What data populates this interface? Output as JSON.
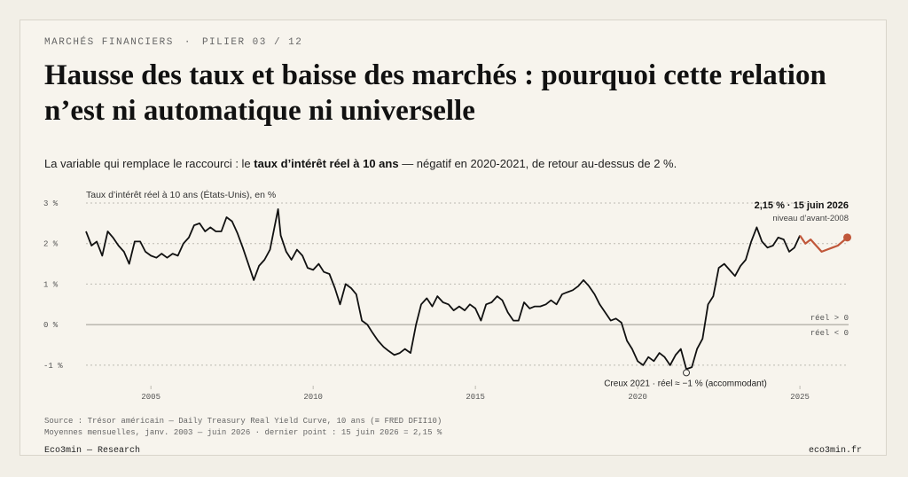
{
  "header": {
    "section": "MARCHÉS FINANCIERS",
    "separator": "·",
    "pillar": "PILIER 03 / 12",
    "title": "Hausse des taux et baisse des marchés : pourquoi cette relation n’est ni automatique ni universelle"
  },
  "lede": {
    "before": "La variable qui remplace le raccourci : le ",
    "bold": "taux d’intérêt réel à 10 ans",
    "after": " — négatif en 2020-2021, de retour au-dessus de 2 %."
  },
  "footer": {
    "source_line1": "Source : Trésor américain — Daily Treasury Real Yield Curve, 10 ans (≡ FRED DFII10)",
    "source_line2": "Moyennes mensuelles, janv. 2003 — juin 2026 · dernier point : 15 juin 2026 = 2,15 %",
    "brand": "Eco3min — Research",
    "site": "eco3min.fr"
  },
  "colors": {
    "line": "#111111",
    "highlight": "#c0573a",
    "grid": "#bdbab2",
    "axis_text": "#555555",
    "zero_line": "#9a978f"
  },
  "chart_data": {
    "type": "line",
    "ylabel": "Taux d’intérêt réel à 10 ans (États-Unis), en %",
    "ylim": [
      -1.2,
      3
    ],
    "yticks": [
      3,
      2,
      1,
      0,
      -1
    ],
    "ytick_labels": [
      "3 %",
      "2 %",
      "1 %",
      "0 %",
      "-1 %"
    ],
    "xlim": [
      2003.0,
      2026.5
    ],
    "xticks": [
      2005,
      2010,
      2015,
      2020,
      2025
    ],
    "xtick_labels": [
      "2005",
      "2010",
      "2015",
      "2020",
      "2025"
    ],
    "grid": true,
    "zero_labels": {
      "above": "réel > 0",
      "below": "réel < 0"
    },
    "series": [
      {
        "points": [
          [
            2003.0,
            2.3
          ],
          [
            2003.17,
            1.95
          ],
          [
            2003.33,
            2.05
          ],
          [
            2003.5,
            1.7
          ],
          [
            2003.67,
            2.3
          ],
          [
            2003.83,
            2.15
          ],
          [
            2004.0,
            1.95
          ],
          [
            2004.17,
            1.8
          ],
          [
            2004.33,
            1.5
          ],
          [
            2004.5,
            2.05
          ],
          [
            2004.67,
            2.05
          ],
          [
            2004.83,
            1.8
          ],
          [
            2005.0,
            1.7
          ],
          [
            2005.17,
            1.65
          ],
          [
            2005.33,
            1.75
          ],
          [
            2005.5,
            1.65
          ],
          [
            2005.67,
            1.75
          ],
          [
            2005.83,
            1.7
          ],
          [
            2006.0,
            2.0
          ],
          [
            2006.17,
            2.15
          ],
          [
            2006.33,
            2.45
          ],
          [
            2006.5,
            2.5
          ],
          [
            2006.67,
            2.3
          ],
          [
            2006.83,
            2.4
          ],
          [
            2007.0,
            2.3
          ],
          [
            2007.17,
            2.3
          ],
          [
            2007.33,
            2.65
          ],
          [
            2007.5,
            2.55
          ],
          [
            2007.67,
            2.25
          ],
          [
            2007.83,
            1.9
          ],
          [
            2008.0,
            1.5
          ],
          [
            2008.17,
            1.1
          ],
          [
            2008.33,
            1.45
          ],
          [
            2008.5,
            1.6
          ],
          [
            2008.67,
            1.85
          ],
          [
            2008.83,
            2.5
          ],
          [
            2008.92,
            2.85
          ],
          [
            2009.0,
            2.2
          ],
          [
            2009.17,
            1.8
          ],
          [
            2009.33,
            1.6
          ],
          [
            2009.5,
            1.85
          ],
          [
            2009.67,
            1.7
          ],
          [
            2009.83,
            1.4
          ],
          [
            2010.0,
            1.35
          ],
          [
            2010.17,
            1.5
          ],
          [
            2010.33,
            1.3
          ],
          [
            2010.5,
            1.25
          ],
          [
            2010.67,
            0.9
          ],
          [
            2010.83,
            0.5
          ],
          [
            2011.0,
            1.0
          ],
          [
            2011.17,
            0.9
          ],
          [
            2011.33,
            0.75
          ],
          [
            2011.5,
            0.1
          ],
          [
            2011.67,
            0.0
          ],
          [
            2011.83,
            -0.2
          ],
          [
            2012.0,
            -0.4
          ],
          [
            2012.17,
            -0.55
          ],
          [
            2012.33,
            -0.65
          ],
          [
            2012.5,
            -0.75
          ],
          [
            2012.67,
            -0.7
          ],
          [
            2012.83,
            -0.6
          ],
          [
            2013.0,
            -0.7
          ],
          [
            2013.17,
            0.0
          ],
          [
            2013.33,
            0.5
          ],
          [
            2013.5,
            0.65
          ],
          [
            2013.67,
            0.45
          ],
          [
            2013.83,
            0.7
          ],
          [
            2014.0,
            0.55
          ],
          [
            2014.17,
            0.5
          ],
          [
            2014.33,
            0.35
          ],
          [
            2014.5,
            0.45
          ],
          [
            2014.67,
            0.35
          ],
          [
            2014.83,
            0.5
          ],
          [
            2015.0,
            0.4
          ],
          [
            2015.17,
            0.1
          ],
          [
            2015.33,
            0.5
          ],
          [
            2015.5,
            0.55
          ],
          [
            2015.67,
            0.7
          ],
          [
            2015.83,
            0.6
          ],
          [
            2016.0,
            0.3
          ],
          [
            2016.17,
            0.1
          ],
          [
            2016.33,
            0.1
          ],
          [
            2016.5,
            0.55
          ],
          [
            2016.67,
            0.4
          ],
          [
            2016.83,
            0.45
          ],
          [
            2017.0,
            0.45
          ],
          [
            2017.17,
            0.5
          ],
          [
            2017.33,
            0.6
          ],
          [
            2017.5,
            0.5
          ],
          [
            2017.67,
            0.75
          ],
          [
            2017.83,
            0.8
          ],
          [
            2018.0,
            0.85
          ],
          [
            2018.17,
            0.95
          ],
          [
            2018.33,
            1.1
          ],
          [
            2018.5,
            0.95
          ],
          [
            2018.67,
            0.75
          ],
          [
            2018.83,
            0.5
          ],
          [
            2019.0,
            0.3
          ],
          [
            2019.17,
            0.1
          ],
          [
            2019.33,
            0.15
          ],
          [
            2019.5,
            0.05
          ],
          [
            2019.67,
            -0.4
          ],
          [
            2019.83,
            -0.6
          ],
          [
            2020.0,
            -0.9
          ],
          [
            2020.17,
            -1.0
          ],
          [
            2020.33,
            -0.8
          ],
          [
            2020.5,
            -0.9
          ],
          [
            2020.67,
            -0.7
          ],
          [
            2020.83,
            -0.8
          ],
          [
            2021.0,
            -1.0
          ],
          [
            2021.17,
            -0.75
          ],
          [
            2021.33,
            -0.6
          ],
          [
            2021.5,
            -1.1
          ],
          [
            2021.67,
            -1.05
          ],
          [
            2021.83,
            -0.6
          ],
          [
            2022.0,
            -0.35
          ],
          [
            2022.17,
            0.5
          ],
          [
            2022.33,
            0.7
          ],
          [
            2022.5,
            1.4
          ],
          [
            2022.67,
            1.5
          ],
          [
            2022.83,
            1.35
          ],
          [
            2023.0,
            1.2
          ],
          [
            2023.17,
            1.45
          ],
          [
            2023.33,
            1.6
          ],
          [
            2023.5,
            2.05
          ],
          [
            2023.67,
            2.4
          ],
          [
            2023.83,
            2.05
          ],
          [
            2024.0,
            1.9
          ],
          [
            2024.17,
            1.95
          ],
          [
            2024.33,
            2.15
          ],
          [
            2024.5,
            2.1
          ],
          [
            2024.67,
            1.8
          ],
          [
            2024.83,
            1.9
          ],
          [
            2025.0,
            2.2
          ]
        ]
      },
      {
        "points": [
          [
            2025.0,
            2.2
          ],
          [
            2025.17,
            2.0
          ],
          [
            2025.33,
            2.1
          ],
          [
            2025.5,
            1.95
          ],
          [
            2025.67,
            1.8
          ],
          [
            2025.83,
            1.85
          ],
          [
            2026.0,
            1.9
          ],
          [
            2026.17,
            1.95
          ],
          [
            2026.46,
            2.15
          ]
        ]
      }
    ],
    "annotations": {
      "last_point": {
        "x": 2026.46,
        "y": 2.15,
        "label": "2,15 % · 15 juin 2026",
        "sublabel": "niveau d’avant-2008"
      },
      "trough": {
        "x": 2021.5,
        "y": -1.1,
        "label": "Creux 2021 · réel ≈ −1 % (accommodant)"
      }
    }
  }
}
